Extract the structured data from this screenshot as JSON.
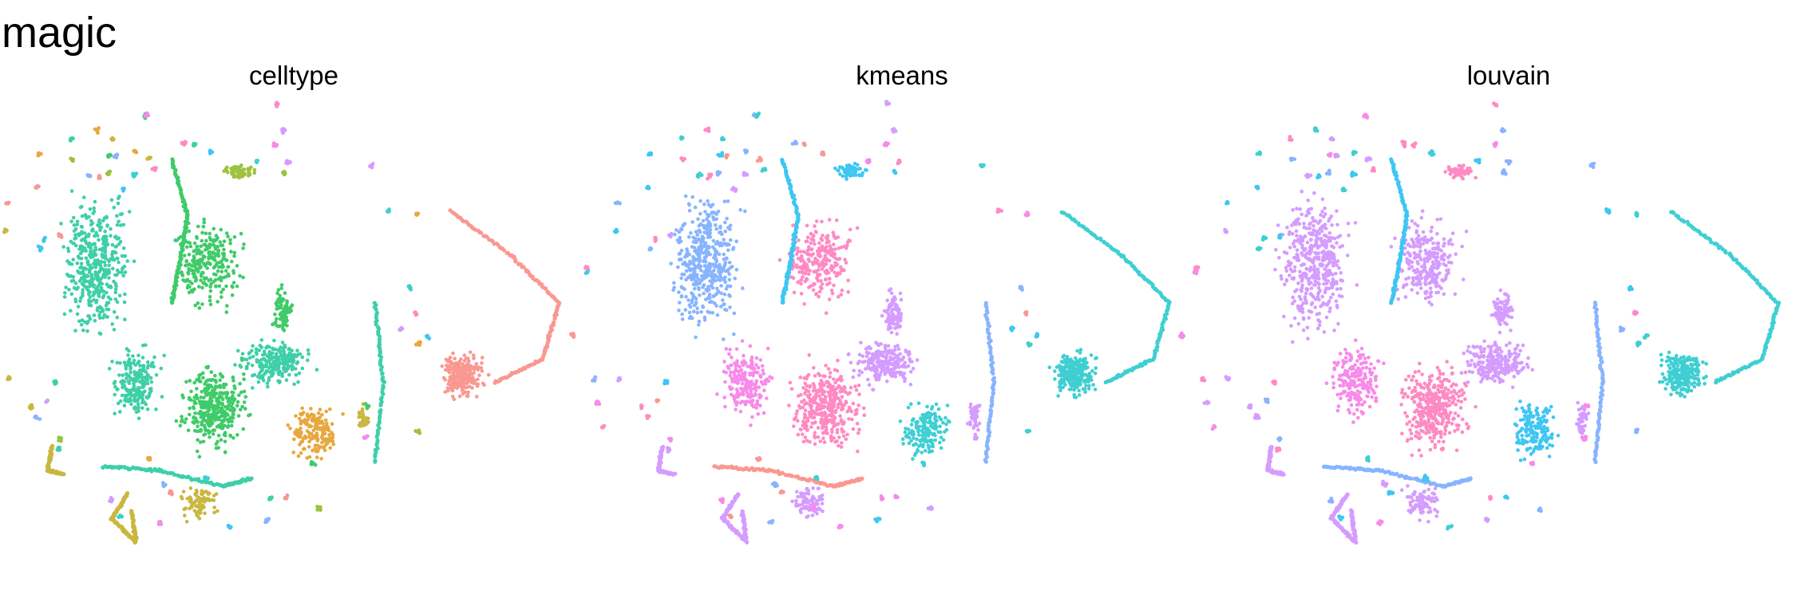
{
  "title": "magic",
  "panels": [
    "celltype",
    "kmeans",
    "louvain"
  ],
  "chart_data": [
    {
      "type": "scatter",
      "title": "celltype",
      "axes_visible": false,
      "grid": false,
      "legend": "none",
      "color_scheme": [
        "#F8766D",
        "#DE8C00",
        "#B79F00",
        "#7CAE00",
        "#00BA38",
        "#00C08B",
        "#00BFC4",
        "#00B4F0",
        "#619CFF",
        "#C77CFF",
        "#F564E3",
        "#FF64B0"
      ]
    },
    {
      "type": "scatter",
      "title": "kmeans",
      "axes_visible": false,
      "grid": false,
      "legend": "none",
      "color_scheme": [
        "#F564E3",
        "#FF64B0",
        "#00B4F0",
        "#00BFC4",
        "#C77CFF",
        "#619CFF",
        "#F8766D"
      ]
    },
    {
      "type": "scatter",
      "title": "louvain",
      "axes_visible": false,
      "grid": false,
      "legend": "none",
      "color_scheme": [
        "#F564E3",
        "#FF64B0",
        "#00B4F0",
        "#00BFC4",
        "#C77CFF",
        "#619CFF"
      ]
    }
  ]
}
